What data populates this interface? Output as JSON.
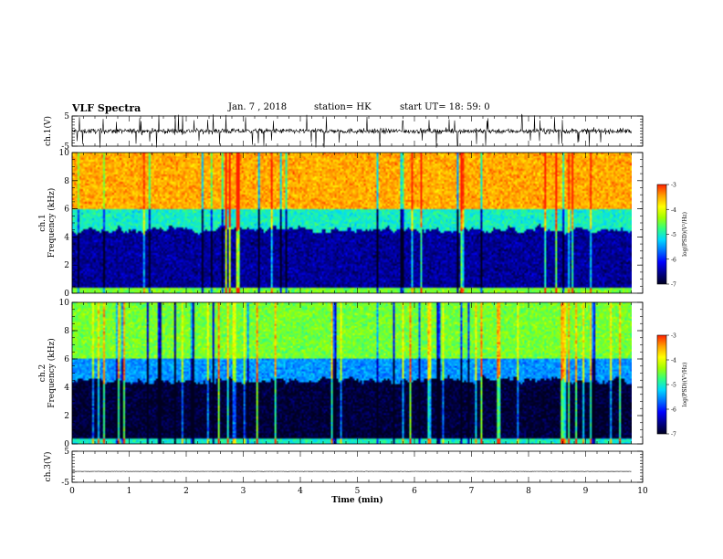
{
  "header": {
    "title": "VLF Spectra",
    "date": "Jan. 7 , 2018",
    "station": "station= HK",
    "start": "start UT= 18: 59: 0"
  },
  "colors": {
    "colormap": [
      "#000020",
      "#00008a",
      "#0000ff",
      "#0070ff",
      "#00d8ff",
      "#30ff80",
      "#a0ff00",
      "#ffff00",
      "#ffa000",
      "#ff2000",
      "#ffffff"
    ]
  },
  "chart_data": [
    {
      "type": "line",
      "panel": "ch1-waveform",
      "ylabel": "ch.1(V)",
      "ylim": [
        -5,
        5
      ],
      "yticks": [
        "5",
        "-5"
      ],
      "xlim": [
        0,
        10
      ],
      "series": [
        {
          "mean_value": 0,
          "typical_amplitude": 1.5,
          "spike_amplitude": 5,
          "x_end": 9.8
        }
      ]
    },
    {
      "type": "heatmap",
      "panel": "ch1-spectrogram",
      "ylabel": "ch.1 Frequency (kHz)",
      "ylim": [
        0,
        10
      ],
      "yticks": [
        "0",
        "2",
        "4",
        "6",
        "8",
        "10"
      ],
      "xlim": [
        0,
        10
      ],
      "x_end": 9.8,
      "colorbar": {
        "label": "log(PSD)(V²/Hz)",
        "range": [
          -7,
          -3
        ],
        "ticks": [
          "-3",
          "-4",
          "-5",
          "-6",
          "-7"
        ]
      },
      "bands": [
        {
          "freq_range_khz": [
            0,
            0.4
          ],
          "log_psd": -4.5
        },
        {
          "freq_range_khz": [
            0.4,
            4.5
          ],
          "log_psd": -6.5
        },
        {
          "freq_range_khz": [
            4.5,
            6
          ],
          "log_psd": -5
        },
        {
          "freq_range_khz": [
            6,
            10
          ],
          "log_psd": -3.5
        }
      ]
    },
    {
      "type": "heatmap",
      "panel": "ch2-spectrogram",
      "ylabel": "ch.2 Frequency (kHz)",
      "ylim": [
        0,
        10
      ],
      "yticks": [
        "0",
        "2",
        "4",
        "6",
        "8",
        "10"
      ],
      "xlim": [
        0,
        10
      ],
      "x_end": 9.8,
      "colorbar": {
        "label": "log(PSD)(V²/Hz)",
        "range": [
          -7,
          -3
        ],
        "ticks": [
          "-3",
          "-4",
          "-5",
          "-6",
          "-7"
        ]
      },
      "bands": [
        {
          "freq_range_khz": [
            0,
            0.4
          ],
          "log_psd": -5
        },
        {
          "freq_range_khz": [
            0.4,
            4.5
          ],
          "log_psd": -6.9
        },
        {
          "freq_range_khz": [
            4.5,
            6
          ],
          "log_psd": -5.5
        },
        {
          "freq_range_khz": [
            6,
            10
          ],
          "log_psd": -4.5
        }
      ]
    },
    {
      "type": "line",
      "panel": "ch3-waveform",
      "ylabel": "ch.3(V)",
      "ylim": [
        -5,
        5
      ],
      "yticks": [
        "5",
        "-5"
      ],
      "xlim": [
        0,
        10
      ],
      "xlabel": "Time (min)",
      "xticks": [
        "0",
        "1",
        "2",
        "3",
        "4",
        "5",
        "6",
        "7",
        "8",
        "9",
        "10"
      ],
      "series": [
        {
          "mean_value": -1.5,
          "typical_amplitude": 0.1,
          "x_end": 9.8
        }
      ]
    }
  ]
}
